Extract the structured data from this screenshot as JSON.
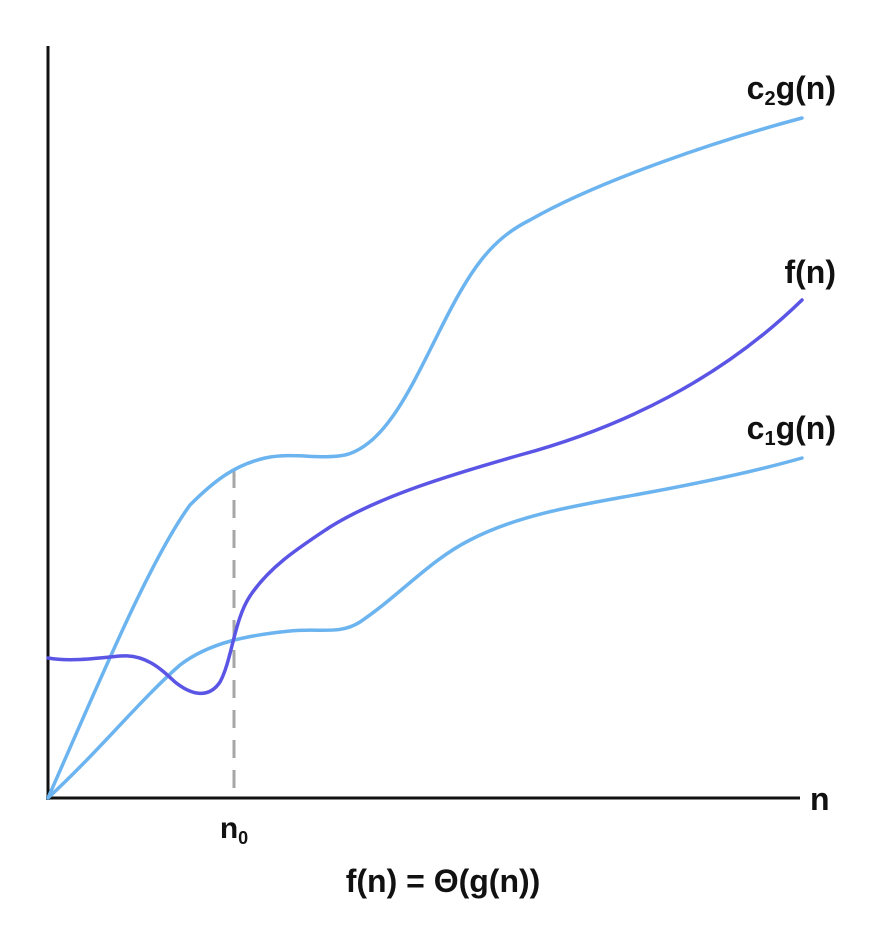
{
  "diagram": {
    "caption": "f(n) = Θ(g(n))",
    "x_axis_label": "n",
    "threshold_label_base": "n",
    "threshold_label_sub": "0",
    "curves": {
      "upper": {
        "label_base": "c",
        "label_sub": "2",
        "label_rest": "g(n)",
        "color": "#6cb4ef"
      },
      "f": {
        "label": "f(n)",
        "color": "#5b55e6"
      },
      "lower": {
        "label_base": "c",
        "label_sub": "1",
        "label_rest": "g(n)",
        "color": "#6cb4ef"
      }
    },
    "threshold_line_color": "#a6a6a6",
    "axis_color": "#111111"
  }
}
